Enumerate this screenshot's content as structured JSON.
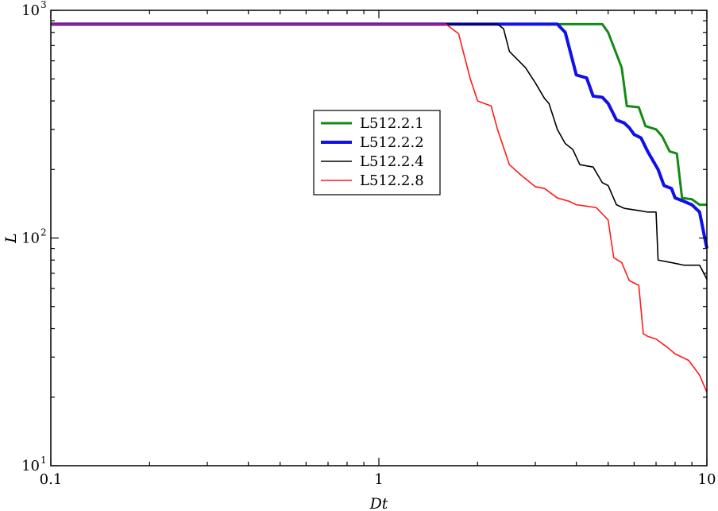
{
  "chart_data": {
    "type": "line",
    "title": "",
    "xlabel": "Dt",
    "ylabel": "L",
    "xscale": "log",
    "yscale": "log",
    "xlim": [
      0.1,
      10
    ],
    "ylim": [
      10,
      1000
    ],
    "grid": false,
    "legend_placement": "center",
    "x_ticks": [
      {
        "value": 0.1,
        "label": "0.1"
      },
      {
        "value": 1,
        "label": "1"
      },
      {
        "value": 10,
        "label": "10"
      }
    ],
    "y_ticks": [
      {
        "value": 10,
        "base": "10",
        "exp": "1"
      },
      {
        "value": 100,
        "base": "10",
        "exp": "2"
      },
      {
        "value": 1000,
        "base": "10",
        "exp": "3"
      }
    ],
    "series": [
      {
        "name": "L512.2.1",
        "color": "#138a13",
        "width": 3,
        "points": [
          [
            0.1,
            870
          ],
          [
            4.8,
            870
          ],
          [
            5.0,
            800
          ],
          [
            5.5,
            560
          ],
          [
            5.7,
            380
          ],
          [
            6.2,
            375
          ],
          [
            6.5,
            310
          ],
          [
            7.0,
            300
          ],
          [
            7.3,
            280
          ],
          [
            7.7,
            240
          ],
          [
            8.1,
            235
          ],
          [
            8.4,
            150
          ],
          [
            9.0,
            148
          ],
          [
            9.5,
            140
          ],
          [
            10.0,
            140
          ]
        ]
      },
      {
        "name": "L512.2.2",
        "color": "#1010e8",
        "width": 4,
        "points": [
          [
            0.1,
            870
          ],
          [
            3.5,
            870
          ],
          [
            3.7,
            800
          ],
          [
            4.0,
            520
          ],
          [
            4.3,
            505
          ],
          [
            4.5,
            420
          ],
          [
            4.8,
            415
          ],
          [
            5.0,
            390
          ],
          [
            5.3,
            330
          ],
          [
            5.6,
            320
          ],
          [
            5.8,
            305
          ],
          [
            6.0,
            285
          ],
          [
            6.3,
            275
          ],
          [
            6.6,
            240
          ],
          [
            7.1,
            200
          ],
          [
            7.4,
            170
          ],
          [
            7.8,
            165
          ],
          [
            8.0,
            150
          ],
          [
            8.5,
            145
          ],
          [
            9.0,
            140
          ],
          [
            9.5,
            130
          ],
          [
            10.0,
            90
          ]
        ]
      },
      {
        "name": "L512.2.4",
        "color": "#000000",
        "width": 1.6,
        "points": [
          [
            0.1,
            870
          ],
          [
            2.3,
            870
          ],
          [
            2.4,
            830
          ],
          [
            2.5,
            660
          ],
          [
            2.8,
            560
          ],
          [
            3.0,
            480
          ],
          [
            3.2,
            410
          ],
          [
            3.3,
            390
          ],
          [
            3.5,
            300
          ],
          [
            3.7,
            260
          ],
          [
            3.9,
            245
          ],
          [
            4.1,
            210
          ],
          [
            4.5,
            205
          ],
          [
            4.8,
            175
          ],
          [
            5.0,
            170
          ],
          [
            5.3,
            140
          ],
          [
            5.6,
            135
          ],
          [
            6.2,
            132
          ],
          [
            6.6,
            130
          ],
          [
            7.0,
            130
          ],
          [
            7.1,
            80
          ],
          [
            7.8,
            78
          ],
          [
            8.5,
            76
          ],
          [
            9.5,
            76
          ],
          [
            10.0,
            66
          ]
        ]
      },
      {
        "name": "L512.2.8",
        "color": "#ff1a1a",
        "width": 1.6,
        "points": [
          [
            0.1,
            870
          ],
          [
            1.6,
            870
          ],
          [
            1.75,
            790
          ],
          [
            1.9,
            500
          ],
          [
            2.0,
            400
          ],
          [
            2.2,
            380
          ],
          [
            2.3,
            300
          ],
          [
            2.4,
            250
          ],
          [
            2.5,
            210
          ],
          [
            2.7,
            190
          ],
          [
            3.0,
            168
          ],
          [
            3.2,
            165
          ],
          [
            3.5,
            150
          ],
          [
            3.8,
            145
          ],
          [
            4.0,
            140
          ],
          [
            4.3,
            138
          ],
          [
            4.6,
            136
          ],
          [
            5.0,
            120
          ],
          [
            5.2,
            82
          ],
          [
            5.5,
            78
          ],
          [
            5.8,
            65
          ],
          [
            6.2,
            62
          ],
          [
            6.4,
            38
          ],
          [
            6.6,
            37
          ],
          [
            7.0,
            36
          ],
          [
            7.6,
            33
          ],
          [
            8.0,
            31
          ],
          [
            8.8,
            29
          ],
          [
            9.5,
            25
          ],
          [
            10.0,
            21
          ]
        ]
      }
    ]
  }
}
